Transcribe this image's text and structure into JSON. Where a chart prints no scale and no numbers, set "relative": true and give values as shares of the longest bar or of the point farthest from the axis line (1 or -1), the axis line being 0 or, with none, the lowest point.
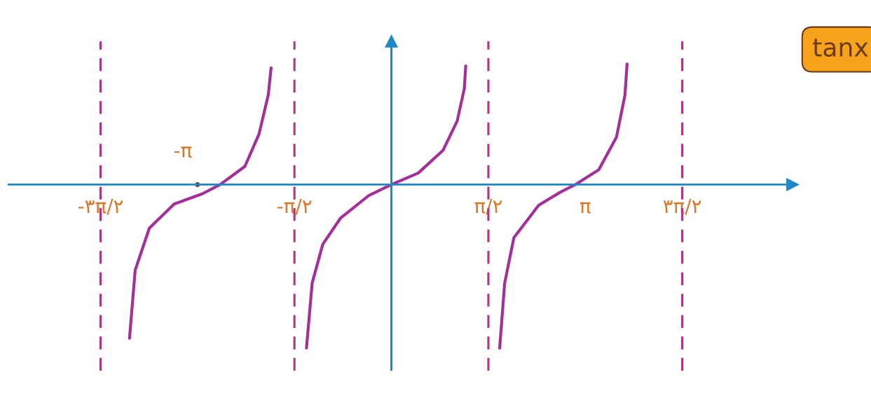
{
  "chart_data": {
    "type": "line",
    "title": "tanx",
    "relative": true,
    "xlim": [
      -6.2,
      6.5
    ],
    "xticks": [
      {
        "value": -4.712,
        "label": "-۳π/۲"
      },
      {
        "value": -1.571,
        "label": "-π/۲"
      },
      {
        "value": 1.571,
        "label": "π/۲"
      },
      {
        "value": 3.142,
        "label": "π"
      },
      {
        "value": 4.712,
        "label": "۳π/۲"
      }
    ],
    "series": [
      {
        "color": "#a3309a",
        "x": [
          -4.243,
          -4.151,
          -3.921,
          -3.52,
          -3.061,
          -2.775,
          -2.374,
          -2.144,
          -1.995,
          -1.949
        ],
        "values": [
          -0.94,
          -0.524,
          -0.266,
          -0.119,
          -0.056,
          0,
          0.111,
          0.31,
          0.548,
          0.714
        ]
      },
      {
        "color": "#a3309a",
        "x": [
          -1.376,
          -1.284,
          -1.112,
          -0.826,
          -0.367,
          0,
          0.436,
          0.837,
          1.066,
          1.181,
          1.204
        ],
        "values": [
          -1,
          -0.603,
          -0.365,
          -0.206,
          -0.067,
          0,
          0.071,
          0.21,
          0.389,
          0.587,
          0.726
        ]
      },
      {
        "color": "#a3309a",
        "x": [
          1.754,
          1.835,
          1.984,
          2.385,
          2.729,
          2.981,
          3.36,
          3.646,
          3.784,
          3.818
        ],
        "values": [
          -1,
          -0.603,
          -0.325,
          -0.127,
          -0.048,
          0,
          0.091,
          0.29,
          0.548,
          0.738
        ]
      }
    ],
    "ref_lines": [
      {
        "axis": "x",
        "value": -4.712,
        "color": "#b5317f",
        "line_style": "dashed"
      },
      {
        "axis": "x",
        "value": -1.571,
        "color": "#b5317f",
        "line_style": "dashed"
      },
      {
        "axis": "x",
        "value": 1.571,
        "color": "#b5317f",
        "line_style": "dashed"
      },
      {
        "axis": "x",
        "value": 4.712,
        "color": "#b5317f",
        "line_style": "dashed"
      },
      {
        "axis": "x",
        "value": 0,
        "color": "#1f88c8",
        "line_style": "solid"
      }
    ],
    "annotations": [
      {
        "text": "-π",
        "x": -3.142,
        "y": 0
      }
    ],
    "grid": false,
    "legend": false,
    "marker": "none",
    "line_style": "solid",
    "tick_labels": "x"
  }
}
